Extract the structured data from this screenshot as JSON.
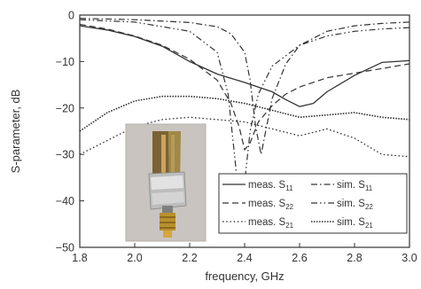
{
  "chart_data": {
    "type": "line",
    "xlabel": "frequency, GHz",
    "ylabel": "S-parameter, dB",
    "xlim": [
      1.8,
      3.0
    ],
    "ylim": [
      -50,
      0
    ],
    "xticks": [
      1.8,
      2.0,
      2.2,
      2.4,
      2.6,
      2.8,
      3.0
    ],
    "yticks": [
      0,
      -10,
      -20,
      -30,
      -40,
      -50
    ],
    "xtick_labels": [
      "1.8",
      "2.0",
      "2.2",
      "2.4",
      "2.6",
      "2.8",
      "3.0"
    ],
    "ytick_labels": [
      "0",
      "−10",
      "−20",
      "−30",
      "−40",
      "−50"
    ],
    "grid": false,
    "legend_position": "bottom-right",
    "series": [
      {
        "key": "meas_s11",
        "label_main": "meas. S",
        "label_sub": "11",
        "style": "solid",
        "color": "#333333",
        "x": [
          1.8,
          1.9,
          2.0,
          2.1,
          2.2,
          2.3,
          2.4,
          2.5,
          2.55,
          2.6,
          2.65,
          2.7,
          2.8,
          2.9,
          3.0
        ],
        "y": [
          -2.3,
          -3.2,
          -4.6,
          -6.7,
          -10.0,
          -12.7,
          -14.5,
          -16.5,
          -18.2,
          -19.7,
          -19.0,
          -16.5,
          -13.0,
          -10.2,
          -9.8
        ]
      },
      {
        "key": "meas_s22",
        "label_main": "meas. S",
        "label_sub": "22",
        "style": "dash",
        "color": "#333333",
        "x": [
          1.8,
          1.9,
          2.0,
          2.1,
          2.2,
          2.3,
          2.35,
          2.38,
          2.4,
          2.42,
          2.45,
          2.5,
          2.55,
          2.6,
          2.7,
          2.8,
          2.9,
          3.0
        ],
        "y": [
          -2.0,
          -3.0,
          -4.5,
          -6.5,
          -9.5,
          -14.0,
          -19.0,
          -24.0,
          -29.0,
          -27.5,
          -23.0,
          -19.5,
          -17.0,
          -15.5,
          -13.5,
          -12.5,
          -11.5,
          -10.5
        ]
      },
      {
        "key": "meas_s21",
        "label_main": "meas. S",
        "label_sub": "21",
        "style": "dot",
        "color": "#333333",
        "x": [
          1.8,
          1.9,
          2.0,
          2.1,
          2.2,
          2.3,
          2.4,
          2.5,
          2.6,
          2.7,
          2.8,
          2.9,
          3.0
        ],
        "y": [
          -30.0,
          -27.0,
          -24.0,
          -22.5,
          -22.0,
          -22.5,
          -23.0,
          -24.5,
          -26.0,
          -24.5,
          -26.5,
          -30.0,
          -30.5
        ]
      },
      {
        "key": "sim_s11",
        "label_main": "sim. S",
        "label_sub": "11",
        "style": "dashdot",
        "color": "#333333",
        "x": [
          1.8,
          2.0,
          2.2,
          2.3,
          2.35,
          2.4,
          2.42,
          2.44,
          2.46,
          2.48,
          2.5,
          2.55,
          2.6,
          2.7,
          2.8,
          2.9,
          3.0
        ],
        "y": [
          -0.7,
          -1.0,
          -1.6,
          -2.5,
          -4.0,
          -8.0,
          -14.0,
          -24.0,
          -30.0,
          -24.0,
          -18.0,
          -10.5,
          -6.5,
          -3.5,
          -2.3,
          -1.8,
          -1.5
        ]
      },
      {
        "key": "sim_s22",
        "label_main": "sim. S",
        "label_sub": "22",
        "style": "dashdotdot",
        "color": "#333333",
        "x": [
          1.8,
          2.0,
          2.2,
          2.3,
          2.34,
          2.37,
          2.38,
          2.4,
          2.42,
          2.45,
          2.5,
          2.6,
          2.7,
          2.8,
          2.9,
          3.0
        ],
        "y": [
          -1.0,
          -1.5,
          -3.5,
          -8.0,
          -17.0,
          -34.0,
          -44.0,
          -36.0,
          -25.0,
          -17.0,
          -11.0,
          -6.5,
          -4.5,
          -3.5,
          -3.0,
          -2.7
        ]
      },
      {
        "key": "sim_s21",
        "label_main": "sim. S",
        "label_sub": "21",
        "style": "densedot",
        "color": "#333333",
        "x": [
          1.8,
          1.9,
          2.0,
          2.1,
          2.2,
          2.3,
          2.4,
          2.5,
          2.6,
          2.7,
          2.8,
          2.9,
          3.0
        ],
        "y": [
          -25.0,
          -21.0,
          -18.5,
          -17.5,
          -17.5,
          -18.0,
          -19.0,
          -20.5,
          -22.0,
          -21.5,
          -21.0,
          -22.0,
          -22.5
        ]
      }
    ]
  }
}
